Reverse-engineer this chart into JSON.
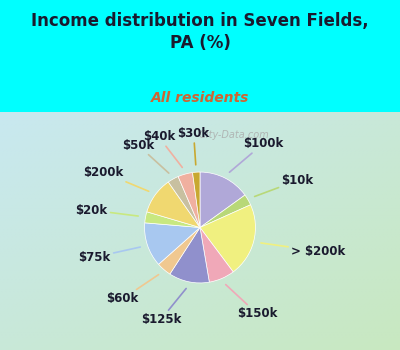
{
  "title": "Income distribution in Seven Fields,\nPA (%)",
  "subtitle": "All residents",
  "title_color": "#1a1a2e",
  "subtitle_color": "#cc6633",
  "background_cyan": "#00ffff",
  "background_chart_tl": "#c8e8f0",
  "background_chart_br": "#c8e8c8",
  "labels": [
    "$100k",
    "$10k",
    "> $200k",
    "$150k",
    "$125k",
    "$60k",
    "$75k",
    "$20k",
    "$200k",
    "$50k",
    "$40k",
    "$30k"
  ],
  "values": [
    14,
    3,
    20,
    7,
    11,
    4,
    12,
    3,
    10,
    3,
    4,
    2
  ],
  "colors": [
    "#b0a8d8",
    "#b8d878",
    "#f0f080",
    "#f0a8b8",
    "#9090cc",
    "#f0c890",
    "#a8c8f0",
    "#c8e880",
    "#f0d870",
    "#c8c0a0",
    "#f0b0a0",
    "#c8a830"
  ],
  "label_fontsize": 8.5,
  "watermark": " City-Data.com",
  "startangle": 90
}
